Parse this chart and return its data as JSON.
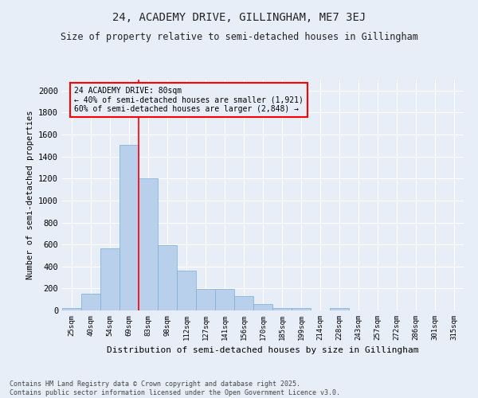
{
  "title": "24, ACADEMY DRIVE, GILLINGHAM, ME7 3EJ",
  "subtitle": "Size of property relative to semi-detached houses in Gillingham",
  "xlabel": "Distribution of semi-detached houses by size in Gillingham",
  "ylabel": "Number of semi-detached properties",
  "categories": [
    "25sqm",
    "40sqm",
    "54sqm",
    "69sqm",
    "83sqm",
    "98sqm",
    "112sqm",
    "127sqm",
    "141sqm",
    "156sqm",
    "170sqm",
    "185sqm",
    "199sqm",
    "214sqm",
    "228sqm",
    "243sqm",
    "257sqm",
    "272sqm",
    "286sqm",
    "301sqm",
    "315sqm"
  ],
  "values": [
    20,
    155,
    565,
    1505,
    1200,
    595,
    360,
    195,
    195,
    130,
    55,
    25,
    25,
    0,
    20,
    0,
    0,
    0,
    0,
    0,
    0
  ],
  "bar_color": "#b8d0eb",
  "bar_edgecolor": "#7aadd4",
  "background_color": "#e8eef8",
  "grid_color": "#ffffff",
  "red_line_x": 3.5,
  "annotation_title": "24 ACADEMY DRIVE: 80sqm",
  "annotation_line1": "← 40% of semi-detached houses are smaller (1,921)",
  "annotation_line2": "60% of semi-detached houses are larger (2,848) →",
  "footer_line1": "Contains HM Land Registry data © Crown copyright and database right 2025.",
  "footer_line2": "Contains public sector information licensed under the Open Government Licence v3.0.",
  "ylim": [
    0,
    2100
  ],
  "yticks": [
    0,
    200,
    400,
    600,
    800,
    1000,
    1200,
    1400,
    1600,
    1800,
    2000
  ]
}
